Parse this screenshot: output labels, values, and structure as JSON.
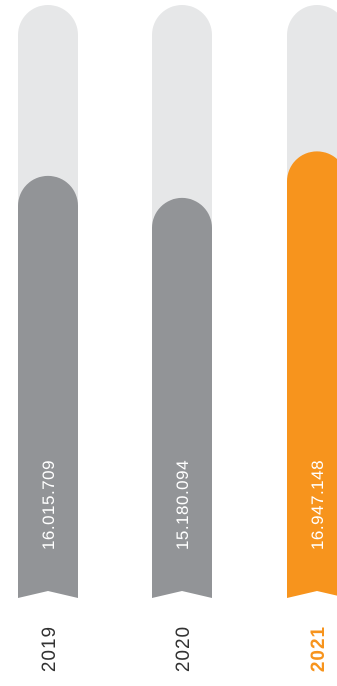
{
  "chart_data": {
    "type": "bar",
    "orientation": "vertical",
    "categories": [
      "2019",
      "2020",
      "2021"
    ],
    "values": [
      16015709,
      15180094,
      16947148
    ],
    "value_labels": [
      "16.015.709",
      "15.180.094",
      "16.947.148"
    ],
    "highlight_category": "2021",
    "ylim": [
      0,
      22500000
    ],
    "grid": false,
    "legend": "none",
    "colors": {
      "bar": "#929497",
      "highlight": "#f7941d",
      "track": "#e6e7e8",
      "year_text": "#333333",
      "year_highlight_text": "#f7941d"
    }
  }
}
